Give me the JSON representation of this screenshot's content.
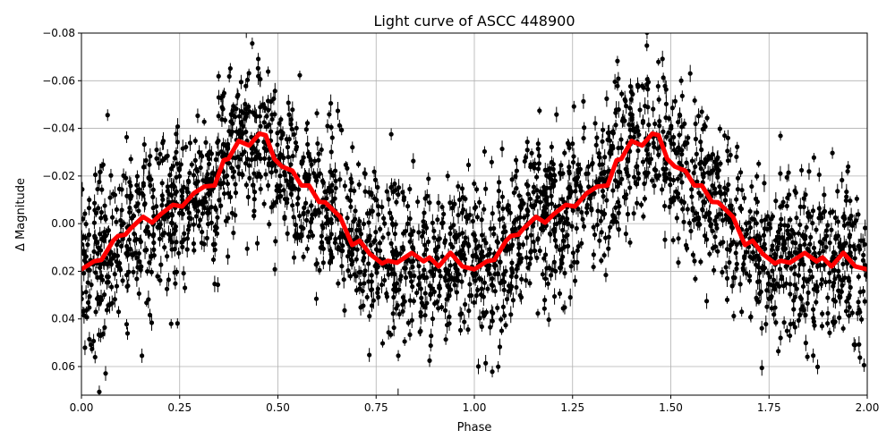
{
  "chart_data": {
    "type": "scatter",
    "title": "Light curve of ASCC 448900",
    "xlabel": "Phase",
    "ylabel": "Δ Magnitude",
    "xlim": [
      0,
      2
    ],
    "ylim": [
      0.072,
      -0.08
    ],
    "y_inverted": true,
    "grid": true,
    "xticks": [
      "0.00",
      "0.25",
      "0.50",
      "0.75",
      "1.00",
      "1.25",
      "1.50",
      "1.75",
      "2.00"
    ],
    "xtick_values": [
      0,
      0.25,
      0.5,
      0.75,
      1,
      1.25,
      1.5,
      1.75,
      2
    ],
    "yticks": [
      "−0.08",
      "−0.06",
      "−0.04",
      "−0.02",
      "0.00",
      "0.02",
      "0.04",
      "0.06"
    ],
    "ytick_values": [
      -0.08,
      -0.06,
      -0.04,
      -0.02,
      0,
      0.02,
      0.04,
      0.06
    ],
    "points_color": "#000000",
    "curve_color": "#ff0000",
    "binned_curve": {
      "phase": [
        0.0,
        0.032,
        0.051,
        0.081,
        0.093,
        0.112,
        0.123,
        0.157,
        0.18,
        0.203,
        0.233,
        0.256,
        0.286,
        0.313,
        0.339,
        0.362,
        0.374,
        0.4,
        0.427,
        0.453,
        0.469,
        0.491,
        0.51,
        0.537,
        0.56,
        0.579,
        0.605,
        0.62,
        0.658,
        0.689,
        0.708,
        0.734,
        0.765,
        0.78,
        0.803,
        0.841,
        0.871,
        0.886,
        0.909,
        0.939,
        0.97,
        1.0
      ],
      "magnitude": [
        0.0192,
        0.0158,
        0.0152,
        0.0071,
        0.0052,
        0.0046,
        0.0024,
        -0.0029,
        -0.0004,
        -0.0041,
        -0.0079,
        -0.0072,
        -0.0128,
        -0.0156,
        -0.016,
        -0.0266,
        -0.0272,
        -0.0347,
        -0.0328,
        -0.0378,
        -0.0371,
        -0.0272,
        -0.024,
        -0.0222,
        -0.016,
        -0.016,
        -0.0091,
        -0.009,
        -0.0029,
        0.009,
        0.0071,
        0.0127,
        0.0167,
        0.0156,
        0.0164,
        0.0123,
        0.0158,
        0.0142,
        0.018,
        0.0122,
        0.018,
        0.0192
      ],
      "repeats_with_period": 1
    }
  }
}
